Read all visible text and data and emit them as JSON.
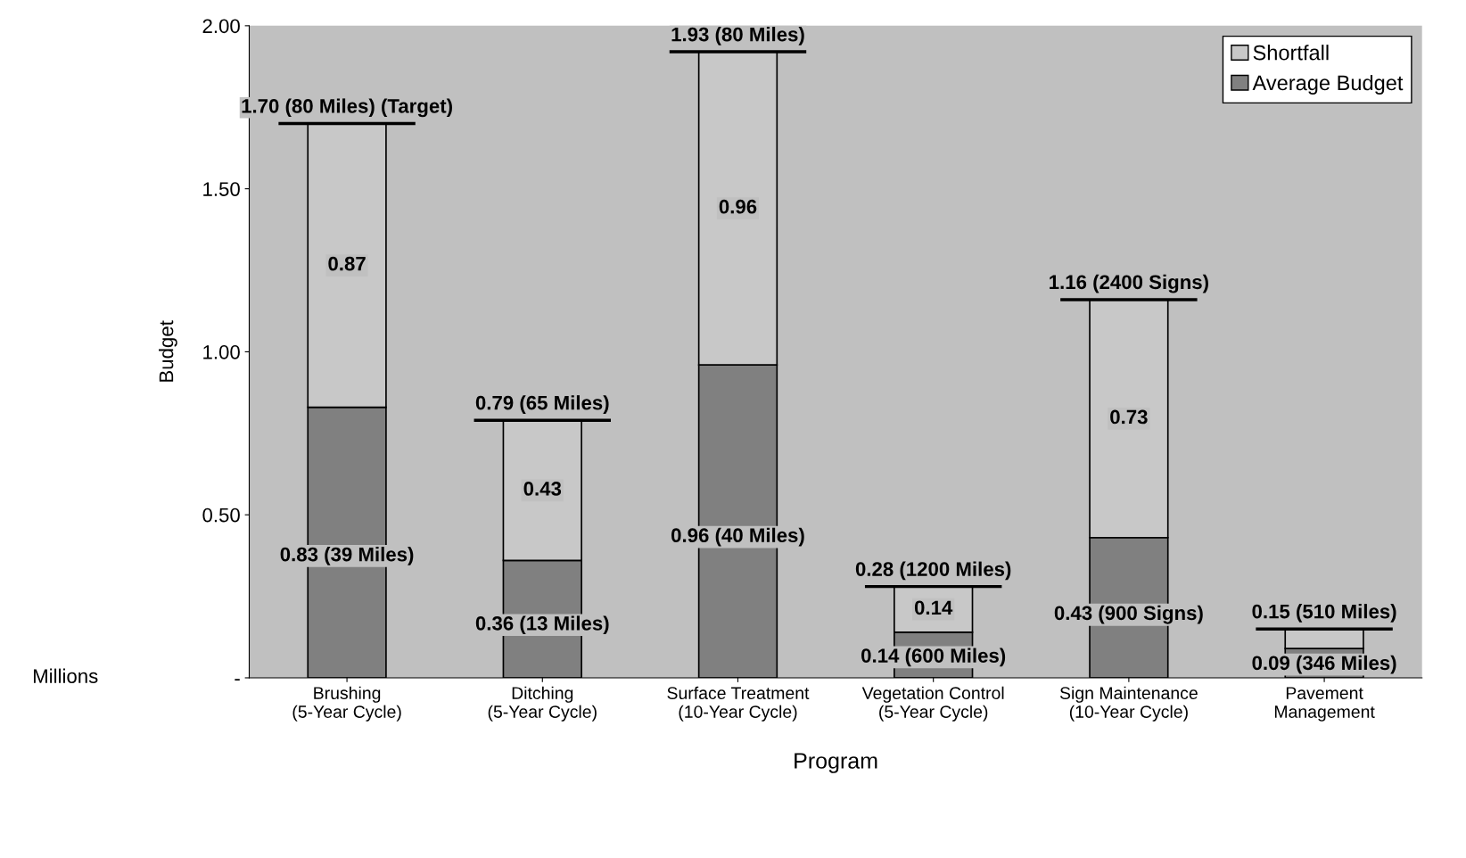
{
  "chart_data": {
    "type": "bar",
    "stacked": true,
    "xlabel": "Program",
    "ylabel": "Budget",
    "categories": [
      "Brushing\n(5-Year Cycle)",
      "Ditching\n(5-Year Cycle)",
      "Surface Treatment\n(10-Year Cycle)",
      "Vegetation Control\n(5-Year Cycle)",
      "Sign Maintenance\n(10-Year Cycle)",
      "Pavement\nManagement"
    ],
    "series": [
      {
        "name": "Average Budget",
        "color": "#808080",
        "values": [
          0.83,
          0.36,
          0.96,
          0.14,
          0.43,
          0.09
        ],
        "value_labels": [
          "0.83 (39 Miles)",
          "0.36 (13 Miles)",
          "0.96 (40 Miles)",
          "0.14 (600 Miles)",
          "0.43 (900 Signs)",
          "0.09 (346 Miles)"
        ]
      },
      {
        "name": "Shortfall",
        "color": "#c8c8c8",
        "values": [
          0.87,
          0.43,
          0.96,
          0.14,
          0.73,
          0.06
        ],
        "value_labels": [
          "0.87",
          "0.43",
          "0.96",
          "0.14",
          "0.73",
          null
        ]
      }
    ],
    "totals": [
      "1.70 (80 Miles) (Target)",
      "0.79 (65 Miles)",
      "1.93 (80 Miles)",
      "0.28 (1200 Miles)",
      "1.16 (2400 Signs)",
      "0.15 (510 Miles)"
    ],
    "ylim": [
      0,
      2.0
    ],
    "yticks": [
      {
        "value": 0,
        "label": "-"
      },
      {
        "value": 0.5,
        "label": "0.50"
      },
      {
        "value": 1.0,
        "label": "1.00"
      },
      {
        "value": 1.5,
        "label": "1.50"
      },
      {
        "value": 2.0,
        "label": "2.00"
      }
    ],
    "annotations": [
      "Millions"
    ],
    "legend": "top right",
    "grid": false
  }
}
